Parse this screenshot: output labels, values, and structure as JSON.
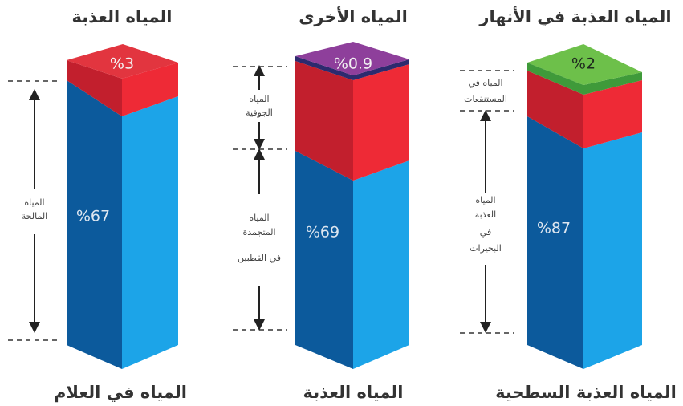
{
  "columns": [
    {
      "title": "المياه العذبة",
      "top_label": "%3",
      "main_label": "%67",
      "bottom_label": "المياه في العلام",
      "side_labels": [
        [
          "المياه",
          "المالحة"
        ]
      ]
    },
    {
      "title": "المياه الأخرى",
      "top_label": "%0.9",
      "main_label": "%69",
      "bottom_label": "المياه العذبة",
      "side_labels": [
        [
          "المياه",
          "الجوفية"
        ],
        [
          "المياه",
          "المتجمدة",
          "في القطبين"
        ]
      ]
    },
    {
      "title": "المياه العذبة في الأنهار",
      "top_label": "%2",
      "main_label": "%87",
      "bottom_label": "المياه العذبة السطحية",
      "side_labels": [
        [
          "المياه في",
          "المستنقعات"
        ],
        [
          "المياه",
          "العذبة",
          "في",
          "البحيرات"
        ]
      ]
    }
  ]
}
